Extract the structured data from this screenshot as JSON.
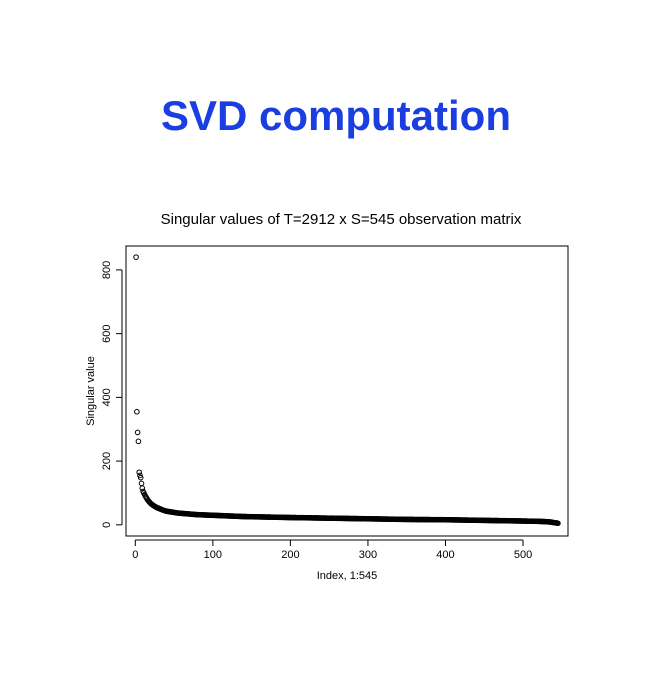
{
  "slide": {
    "title": "SVD computation"
  },
  "chart_data": {
    "type": "scatter",
    "title": "Singular values of T=2912 x S=545 observation matrix",
    "xlabel": "Index, 1:545",
    "ylabel": "Singular value",
    "xlim": [
      -12,
      558
    ],
    "ylim": [
      -35,
      875
    ],
    "xticks": [
      0,
      100,
      200,
      300,
      400,
      500
    ],
    "yticks": [
      0,
      200,
      400,
      600,
      800
    ],
    "marker": "open-circle",
    "color": "#000000",
    "grid": false,
    "legend": "none",
    "n": 545,
    "x": [
      1,
      2,
      3,
      4,
      5,
      6,
      7,
      8,
      9,
      10,
      11,
      12,
      13,
      14,
      15,
      16,
      18,
      20,
      22,
      25,
      28,
      32,
      36,
      40,
      45,
      50,
      55,
      60,
      70,
      80,
      90,
      100,
      120,
      140,
      160,
      180,
      200,
      250,
      300,
      350,
      400,
      450,
      500,
      520,
      530,
      535,
      540,
      543,
      545
    ],
    "y": [
      840,
      355,
      290,
      262,
      165,
      155,
      148,
      130,
      115,
      105,
      100,
      95,
      90,
      86,
      82,
      78,
      72,
      67,
      63,
      58,
      54,
      50,
      46,
      43,
      41,
      39,
      37,
      36,
      34,
      32,
      31,
      30,
      28,
      26,
      25,
      24,
      23,
      21,
      19,
      17,
      16,
      14,
      12,
      11,
      10,
      9,
      7,
      6,
      5
    ]
  }
}
